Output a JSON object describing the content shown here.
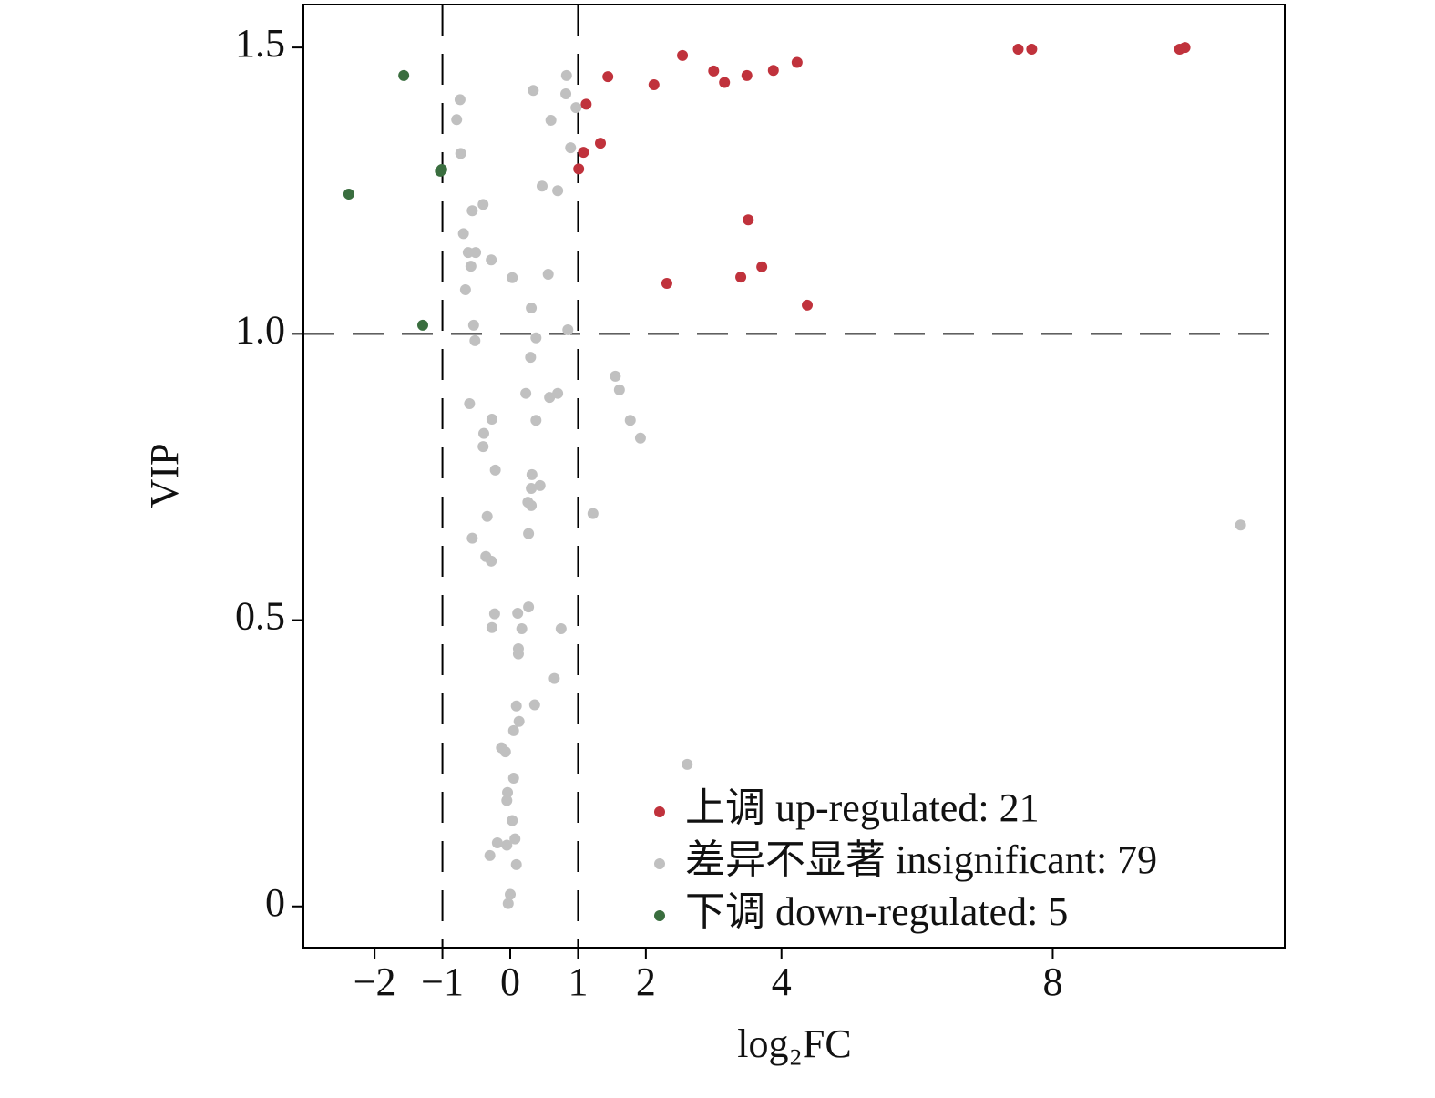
{
  "chart_data": {
    "type": "scatter",
    "xlabel": "log₂FC",
    "ylabel": "VIP",
    "xlim": [
      -3.05,
      11.42
    ],
    "ylim": [
      -0.072,
      1.575
    ],
    "xticks": [
      {
        "value": -2,
        "label": "−2"
      },
      {
        "value": -1,
        "label": "−1"
      },
      0,
      1,
      2,
      4,
      8
    ],
    "yticks": [
      0,
      {
        "value": 0.5,
        "label": "0.5"
      },
      {
        "value": 1.0,
        "label": "1.0"
      },
      1.5
    ],
    "vlines": [
      -1,
      1
    ],
    "hline": 1,
    "legend": "lower right",
    "series": [
      {
        "name": "上调 up-regulated: 21",
        "color": "#c0323c",
        "x": [
          2.54,
          2.12,
          1.44,
          1.12,
          1.08,
          1.33,
          1.01,
          3.0,
          3.16,
          3.49,
          3.88,
          4.23,
          7.49,
          7.69,
          9.87,
          9.95,
          3.51,
          3.71,
          3.4,
          2.31,
          4.38
        ],
        "values": [
          1.486,
          1.435,
          1.449,
          1.401,
          1.317,
          1.333,
          1.288,
          1.459,
          1.439,
          1.451,
          1.46,
          1.474,
          1.497,
          1.497,
          1.497,
          1.5,
          1.199,
          1.117,
          1.099,
          1.088,
          1.05
        ]
      },
      {
        "name": "差异不显著 insignificant: 79",
        "color": "#c0c0c0",
        "x": [
          0.83,
          0.34,
          0.82,
          -0.74,
          0.97,
          -0.79,
          0.6,
          0.89,
          -0.73,
          0.47,
          0.7,
          -0.4,
          -0.56,
          -0.69,
          -0.62,
          -0.51,
          -0.28,
          -0.58,
          0.56,
          0.03,
          -0.66,
          0.31,
          -0.54,
          0.85,
          0.38,
          -0.52,
          0.3,
          1.55,
          1.61,
          0.23,
          0.7,
          0.58,
          -0.6,
          -0.27,
          0.38,
          1.77,
          -0.39,
          1.92,
          -0.4,
          -0.22,
          0.32,
          0.44,
          0.31,
          0.26,
          0.31,
          1.22,
          -0.34,
          10.77,
          0.27,
          -0.56,
          -0.36,
          -0.28,
          -0.23,
          0.11,
          0.27,
          0.17,
          -0.27,
          0.75,
          0.12,
          0.12,
          0.65,
          0.09,
          0.36,
          0.13,
          0.05,
          -0.13,
          -0.07,
          2.61,
          0.05,
          -0.04,
          -0.05,
          0.03,
          0.07,
          -0.19,
          -0.05,
          -0.3,
          0.09,
          0.0,
          -0.03
        ],
        "values": [
          1.451,
          1.425,
          1.419,
          1.409,
          1.395,
          1.374,
          1.373,
          1.325,
          1.315,
          1.258,
          1.25,
          1.226,
          1.215,
          1.175,
          1.142,
          1.142,
          1.129,
          1.118,
          1.104,
          1.098,
          1.077,
          1.045,
          1.015,
          1.007,
          0.993,
          0.988,
          0.959,
          0.926,
          0.902,
          0.896,
          0.896,
          0.889,
          0.878,
          0.851,
          0.849,
          0.849,
          0.826,
          0.818,
          0.803,
          0.762,
          0.754,
          0.735,
          0.73,
          0.706,
          0.7,
          0.686,
          0.681,
          0.666,
          0.651,
          0.643,
          0.611,
          0.603,
          0.511,
          0.512,
          0.523,
          0.485,
          0.487,
          0.485,
          0.45,
          0.441,
          0.398,
          0.35,
          0.352,
          0.323,
          0.307,
          0.277,
          0.27,
          0.248,
          0.224,
          0.199,
          0.185,
          0.15,
          0.118,
          0.111,
          0.107,
          0.089,
          0.073,
          0.021,
          0.005
        ]
      },
      {
        "name": "下调 down-regulated: 5",
        "color": "#3a6e3f",
        "x": [
          -1.57,
          -2.38,
          -1.01,
          -1.03,
          -1.29
        ],
        "values": [
          1.451,
          1.244,
          1.287,
          1.284,
          1.015
        ]
      }
    ]
  }
}
